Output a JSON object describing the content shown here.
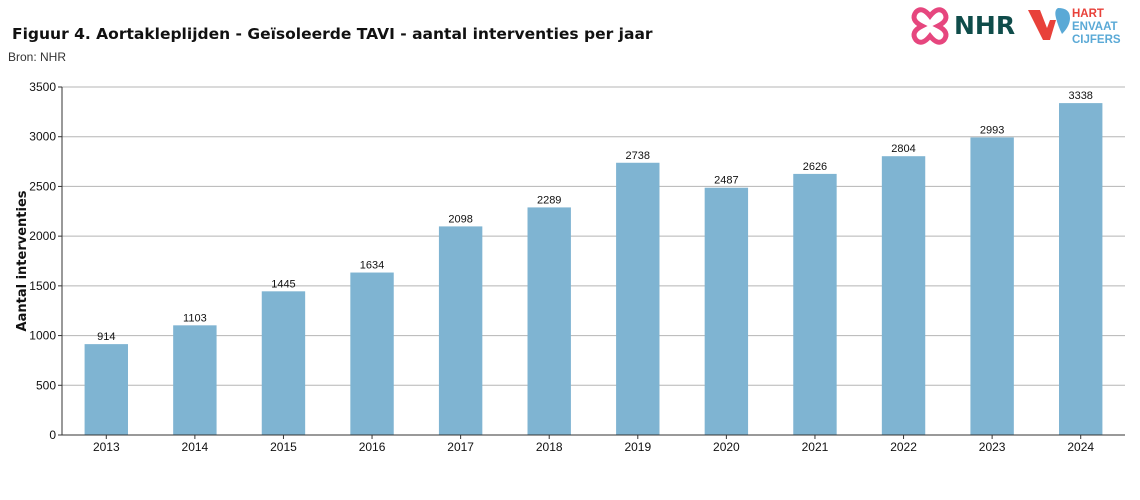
{
  "header": {
    "title": "Figuur 4. Aortakleplijden - Geïsoleerde TAVI - aantal interventies per jaar",
    "source": "Bron: NHR"
  },
  "logos": {
    "nhr_text": "NHR",
    "hartenvaat_line1": "HART",
    "hartenvaat_line2": "ENVAAT",
    "hartenvaat_line3": "CIJFERS",
    "nhr_color": "#e6467e",
    "nhr_text_color": "#0f4c4a",
    "hv_red": "#e8413a",
    "hv_blue": "#5aa9d6"
  },
  "colors": {
    "bar": "#7fb4d2",
    "grid": "#b5b5b5",
    "axis": "#333333"
  },
  "chart_data": {
    "type": "bar",
    "categories": [
      "2013",
      "2014",
      "2015",
      "2016",
      "2017",
      "2018",
      "2019",
      "2020",
      "2021",
      "2022",
      "2023",
      "2024"
    ],
    "values": [
      914,
      1103,
      1445,
      1634,
      2098,
      2289,
      2738,
      2487,
      2626,
      2804,
      2993,
      3338
    ],
    "title": "Figuur 4. Aortakleplijden - Geïsoleerde TAVI - aantal interventies per jaar",
    "xlabel": "",
    "ylabel": "Aantal interventies",
    "ylim": [
      0,
      3500
    ],
    "yticks": [
      0,
      500,
      1000,
      1500,
      2000,
      2500,
      3000,
      3500
    ],
    "grid": true,
    "data_labels": true
  }
}
